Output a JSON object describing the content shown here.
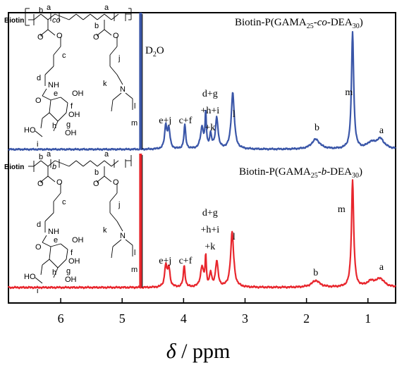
{
  "chart_data": {
    "type": "line",
    "title": "",
    "xlabel": "δ / ppm",
    "ylabel": "",
    "x_reversed": true,
    "xlim": [
      6.85,
      0.55
    ],
    "x_ticks": [
      "6",
      "5",
      "4",
      "3",
      "2",
      "1"
    ],
    "x_tick_values": [
      6,
      5,
      4,
      3,
      2,
      1
    ],
    "grid": false,
    "solvent_label": "D₂O",
    "solvent_shift": 4.7,
    "series": [
      {
        "name": "Biotin-P(GAMA25-co-DEA30)",
        "label_parts": [
          "Biotin-P(GAMA",
          "25",
          "-",
          "co",
          "-DEA",
          "30",
          ")"
        ],
        "color": "#3a56a8",
        "peaks": [
          {
            "x": 4.29,
            "h": 0.16,
            "w": 0.022
          },
          {
            "x": 4.24,
            "h": 0.14,
            "w": 0.022
          },
          {
            "x": 3.98,
            "h": 0.17,
            "w": 0.018
          },
          {
            "x": 3.7,
            "h": 0.15,
            "w": 0.03
          },
          {
            "x": 3.64,
            "h": 0.25,
            "w": 0.012
          },
          {
            "x": 3.56,
            "h": 0.1,
            "w": 0.02
          },
          {
            "x": 3.46,
            "h": 0.22,
            "w": 0.025
          },
          {
            "x": 3.2,
            "h": 0.4,
            "w": 0.03
          },
          {
            "x": 1.85,
            "h": 0.07,
            "w": 0.08
          },
          {
            "x": 1.25,
            "h": 0.83,
            "w": 0.022
          },
          {
            "x": 0.95,
            "h": 0.04,
            "w": 0.08
          },
          {
            "x": 0.8,
            "h": 0.07,
            "w": 0.08
          }
        ],
        "peak_labels": [
          {
            "text": "e+j",
            "x": 4.3,
            "lines": 1
          },
          {
            "text": "c+f",
            "x": 3.97,
            "lines": 1
          },
          {
            "text": "d+g",
            "x": 3.57,
            "lines": 3,
            "lines_text": [
              "d+g",
              "+h+i",
              "+k"
            ]
          },
          {
            "text": "l",
            "x": 3.18,
            "lines": 1
          },
          {
            "text": "b",
            "x": 1.83,
            "lines": 1
          },
          {
            "text": "m",
            "x": 1.31,
            "lines": 1
          },
          {
            "text": "a",
            "x": 0.78,
            "lines": 1
          }
        ]
      },
      {
        "name": "Biotin-P(GAMA25-b-DEA30)",
        "label_parts": [
          "Biotin-P(GAMA",
          "25",
          "-",
          "b",
          "-DEA",
          "30",
          ")"
        ],
        "color": "#e8262d",
        "peaks": [
          {
            "x": 4.29,
            "h": 0.16,
            "w": 0.022
          },
          {
            "x": 4.24,
            "h": 0.14,
            "w": 0.022
          },
          {
            "x": 3.99,
            "h": 0.16,
            "w": 0.018
          },
          {
            "x": 3.7,
            "h": 0.15,
            "w": 0.03
          },
          {
            "x": 3.64,
            "h": 0.22,
            "w": 0.012
          },
          {
            "x": 3.56,
            "h": 0.1,
            "w": 0.02
          },
          {
            "x": 3.46,
            "h": 0.19,
            "w": 0.025
          },
          {
            "x": 3.21,
            "h": 0.41,
            "w": 0.03
          },
          {
            "x": 1.85,
            "h": 0.05,
            "w": 0.08
          },
          {
            "x": 1.25,
            "h": 0.8,
            "w": 0.022
          },
          {
            "x": 0.95,
            "h": 0.04,
            "w": 0.08
          },
          {
            "x": 0.8,
            "h": 0.06,
            "w": 0.08
          }
        ],
        "peak_labels": [
          {
            "text": "e+j",
            "x": 4.3,
            "lines": 1
          },
          {
            "text": "c+f",
            "x": 3.97,
            "lines": 1
          },
          {
            "text": "d+g",
            "x": 3.57,
            "lines": 3,
            "lines_text": [
              "d+g",
              "+h+i",
              "+k"
            ]
          },
          {
            "text": "l",
            "x": 3.18,
            "lines": 1
          },
          {
            "text": "b",
            "x": 1.85,
            "lines": 1
          },
          {
            "text": "m",
            "x": 1.43,
            "lines": 1
          },
          {
            "text": "a",
            "x": 0.78,
            "lines": 1
          }
        ]
      }
    ],
    "structure": {
      "biotin_label": "Biotin",
      "co_label": "co",
      "b_label": "b",
      "atom_labels": [
        "a",
        "b",
        "c",
        "d",
        "e",
        "f",
        "g",
        "h",
        "i",
        "j",
        "k",
        "l",
        "m"
      ],
      "groups": [
        "NH",
        "OH",
        "OH",
        "OH",
        "HO",
        "O",
        "O",
        "O",
        "O",
        "N"
      ],
      "solvent_line_label": "m"
    }
  }
}
